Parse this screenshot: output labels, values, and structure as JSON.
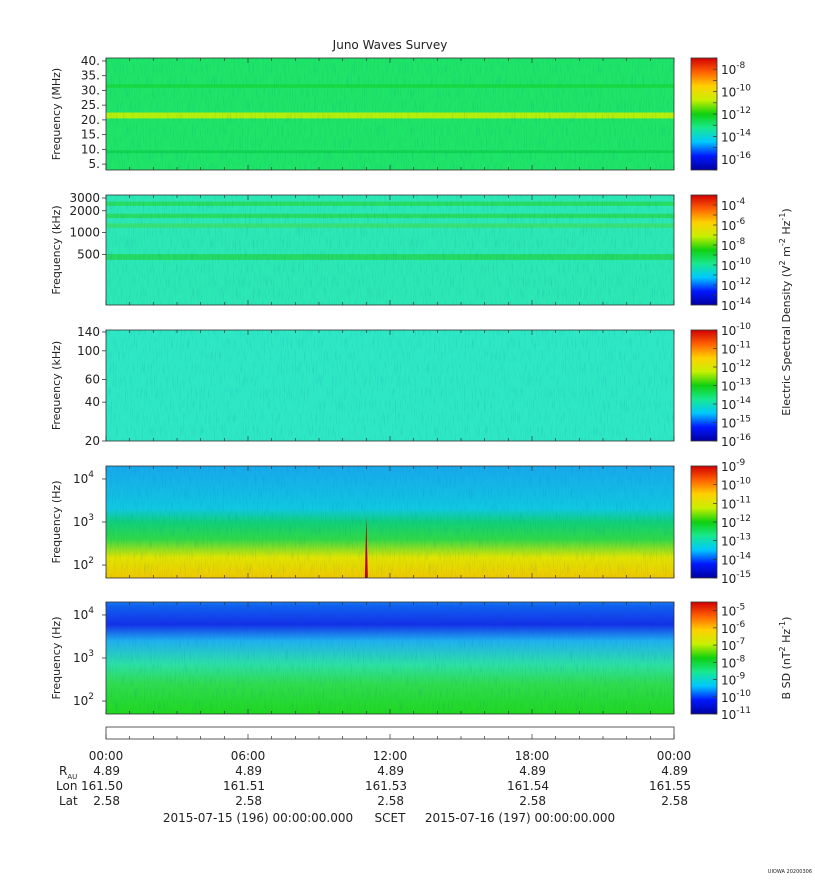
{
  "title": "Juno Waves Survey",
  "watermark": "UIOWA 20200306",
  "chart_data": [
    {
      "type": "heatmap",
      "panel": "hf-high",
      "ylabel": "Frequency (MHz)",
      "yscale": "linear",
      "ylim": [
        3,
        41
      ],
      "yticks": [
        {
          "v": 40,
          "t": "40."
        },
        {
          "v": 35,
          "t": "35."
        },
        {
          "v": 30,
          "t": "30."
        },
        {
          "v": 25,
          "t": "25."
        },
        {
          "v": 20,
          "t": "20."
        },
        {
          "v": 15,
          "t": "15."
        },
        {
          "v": 10,
          "t": "10."
        },
        {
          "v": 5,
          "t": "5."
        }
      ],
      "bands": [
        {
          "at": 21.5,
          "w": 1.0,
          "color": "#c8f000"
        },
        {
          "at": 31.5,
          "w": 0.6,
          "color": "#18d83c"
        },
        {
          "at": 9.2,
          "w": 0.5,
          "color": "#10d250"
        }
      ],
      "base_color": "#1ee468",
      "colorbar": {
        "exp_min": -17,
        "exp_max": -7,
        "labels": [
          -8,
          -10,
          -12,
          -14,
          -16
        ]
      }
    },
    {
      "type": "heatmap",
      "panel": "hf-low",
      "ylabel": "Frequency (kHz)",
      "yscale": "log",
      "ylim": [
        100,
        3300
      ],
      "yticks": [
        {
          "v": 3000,
          "t": "3000"
        },
        {
          "v": 2000,
          "t": "2000"
        },
        {
          "v": 1000,
          "t": "1000"
        },
        {
          "v": 500,
          "t": "500"
        }
      ],
      "bands": [
        {
          "at": 2500,
          "w": 0.03,
          "color": "#28dc5a"
        },
        {
          "at": 1700,
          "w": 0.03,
          "color": "#28dc5a"
        },
        {
          "at": 1250,
          "w": 0.03,
          "color": "#3ae070"
        },
        {
          "at": 460,
          "w": 0.04,
          "color": "#24d85a"
        }
      ],
      "base_color": "#2ce8b4",
      "colorbar": {
        "exp_min": -14,
        "exp_max": -3,
        "labels": [
          -4,
          -6,
          -8,
          -10,
          -12,
          -14
        ]
      }
    },
    {
      "type": "heatmap",
      "panel": "lfr-high",
      "ylabel": "Frequency (kHz)",
      "yscale": "log",
      "ylim": [
        20,
        145
      ],
      "yticks": [
        {
          "v": 140,
          "t": "140"
        },
        {
          "v": 100,
          "t": "100"
        },
        {
          "v": 60,
          "t": "60"
        },
        {
          "v": 40,
          "t": "40"
        },
        {
          "v": 20,
          "t": "20"
        }
      ],
      "bands": [],
      "base_color": "#2ee8c4",
      "colorbar": {
        "exp_min": -16,
        "exp_max": -10,
        "labels": [
          -10,
          -11,
          -12,
          -13,
          -14,
          -15,
          -16
        ]
      }
    },
    {
      "type": "heatmap",
      "panel": "lfr-low",
      "ylabel": "Frequency (Hz)",
      "yscale": "log",
      "ylim": [
        50,
        20000
      ],
      "yticks": [
        {
          "v": 10000,
          "t": "10",
          "e": "4"
        },
        {
          "v": 1000,
          "t": "10",
          "e": "3"
        },
        {
          "v": 100,
          "t": "10",
          "e": "2"
        }
      ],
      "gradient": [
        [
          50,
          "#f0c800"
        ],
        [
          150,
          "#e0e400"
        ],
        [
          400,
          "#30d848"
        ],
        [
          1000,
          "#10d07a"
        ],
        [
          2000,
          "#10c8e0"
        ],
        [
          20000,
          "#18a8ec"
        ]
      ],
      "spike": {
        "x_hours": 11.0,
        "color": "#c00000"
      },
      "colorbar": {
        "exp_min": -15,
        "exp_max": -9,
        "labels": [
          -9,
          -10,
          -11,
          -12,
          -13,
          -14,
          -15
        ]
      }
    },
    {
      "type": "heatmap",
      "panel": "bsd",
      "ylabel": "Frequency (Hz)",
      "yscale": "log",
      "ylim": [
        50,
        20000
      ],
      "yticks": [
        {
          "v": 10000,
          "t": "10",
          "e": "4"
        },
        {
          "v": 1000,
          "t": "10",
          "e": "3"
        },
        {
          "v": 100,
          "t": "10",
          "e": "2"
        }
      ],
      "gradient": [
        [
          50,
          "#20d820"
        ],
        [
          250,
          "#30dc50"
        ],
        [
          700,
          "#2ce0a4"
        ],
        [
          2500,
          "#20b0f0"
        ],
        [
          6000,
          "#1430e8"
        ],
        [
          16000,
          "#1060f0"
        ],
        [
          20000,
          "#1878f0"
        ]
      ],
      "colorbar": {
        "exp_min": -11,
        "exp_max": -4.5,
        "labels": [
          -5,
          -6,
          -7,
          -8,
          -9,
          -10,
          -11
        ]
      }
    }
  ],
  "colorbar_titles": [
    {
      "text": "Electric Spectral Density (V",
      "sup1": "2",
      "mid": " m",
      "sup2": "-2",
      "end": " Hz",
      "sup3": "-1",
      "close": ")"
    },
    {
      "text": "B SD (nT",
      "sup1": "2",
      "end": " Hz",
      "sup3": "-1",
      "close": ")"
    }
  ],
  "time_axis": {
    "xlim_hours": [
      0,
      24
    ],
    "ticks": [
      {
        "label": "00:00",
        "hours": 0,
        "r": "4.89",
        "lon": "161.50",
        "lat": "2.58"
      },
      {
        "label": "06:00",
        "hours": 6,
        "r": "4.89",
        "lon": "161.51",
        "lat": "2.58"
      },
      {
        "label": "12:00",
        "hours": 12,
        "r": "4.89",
        "lon": "161.53",
        "lat": "2.58"
      },
      {
        "label": "18:00",
        "hours": 18,
        "r": "4.89",
        "lon": "161.54",
        "lat": "2.58"
      },
      {
        "label": "00:00",
        "hours": 24,
        "r": "4.89",
        "lon": "161.55",
        "lat": "2.58"
      }
    ],
    "row_labels": {
      "r": "R",
      "r_sub": "AU",
      "lon": "Lon",
      "lat": "Lat"
    },
    "date_start": "2015-07-15 (196) 00:00:00.000",
    "scet": "SCET",
    "date_end": "2015-07-16 (197) 00:00:00.000"
  }
}
